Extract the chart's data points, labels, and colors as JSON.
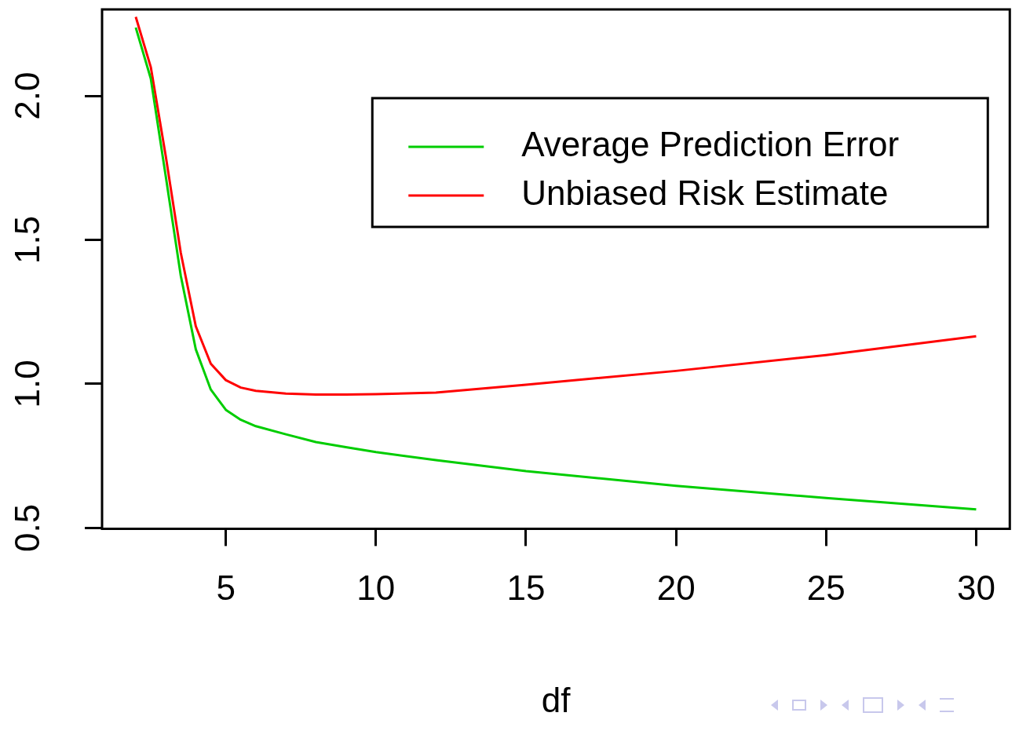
{
  "chart_data": {
    "type": "line",
    "xlabel": "df",
    "x": [
      2,
      2.5,
      3,
      3.5,
      4,
      4.5,
      5,
      5.5,
      6,
      7,
      8,
      9,
      10,
      12,
      15,
      20,
      25,
      30
    ],
    "series": [
      {
        "name": "Average Prediction Error",
        "color": "#00cd00",
        "values": [
          2.237,
          2.06,
          1.72,
          1.375,
          1.12,
          0.98,
          0.91,
          0.875,
          0.853,
          0.825,
          0.798,
          0.78,
          0.763,
          0.735,
          0.697,
          0.646,
          0.604,
          0.564
        ]
      },
      {
        "name": "Unbiased Risk Estimate",
        "color": "#ff0000",
        "values": [
          2.274,
          2.1,
          1.79,
          1.455,
          1.2,
          1.07,
          1.013,
          0.987,
          0.976,
          0.966,
          0.963,
          0.963,
          0.964,
          0.97,
          0.997,
          1.045,
          1.1,
          1.165
        ]
      }
    ],
    "xlim": [
      0.877,
      31.12
    ],
    "xticks": [
      5,
      10,
      15,
      20,
      25,
      30
    ],
    "ylim": [
      0.497,
      2.3
    ],
    "yticks": [
      0.5,
      {
        "value": 1,
        "label": "1.0"
      },
      1.5,
      {
        "value": 2,
        "label": "2.0"
      }
    ],
    "grid": false,
    "legend": "top right",
    "marker": "none",
    "line_style": "solid"
  }
}
